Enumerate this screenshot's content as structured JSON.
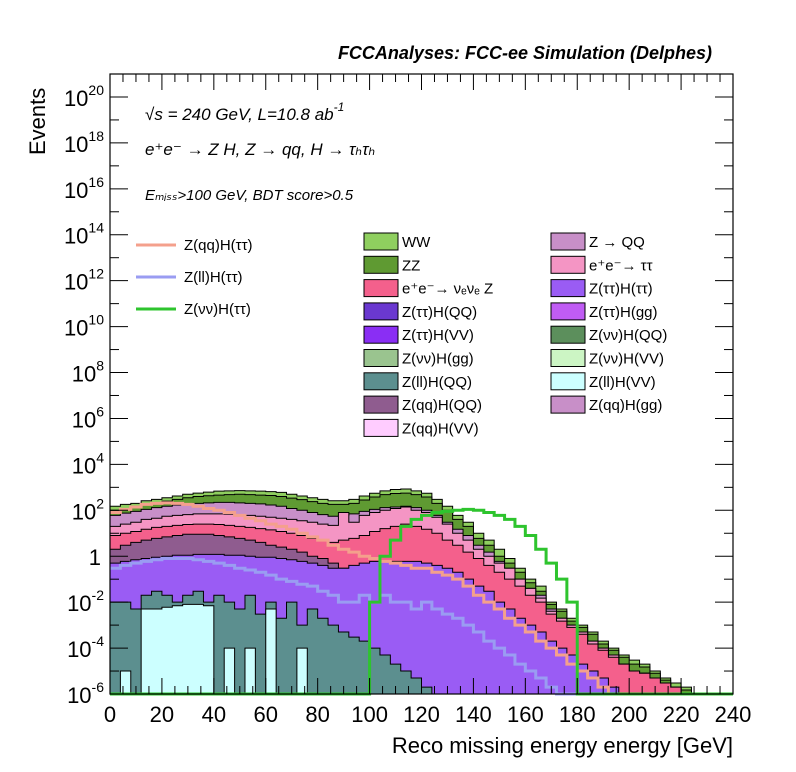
{
  "header": {
    "title": "FCCAnalyses: FCC-ee Simulation (Delphes)"
  },
  "annotations": {
    "line1_sqrt": "√s",
    "line1_rest": "= 240 GeV, L=10.8 ab",
    "line1_sup": "-1",
    "line2": "e⁺e⁻ → Z H, Z → qq, H → τₕτₕ",
    "line3": "Eₘᵢₛₛ>100 GeV, BDT score>0.5"
  },
  "chart_data": {
    "type": "bar",
    "title": "",
    "xlabel": "Reco missing energy energy [GeV]",
    "ylabel": "Events",
    "xlim": [
      0,
      240
    ],
    "ylim": [
      1e-06,
      1e+21
    ],
    "log_y": true,
    "x_ticks": [
      "0",
      "20",
      "40",
      "60",
      "80",
      "100",
      "120",
      "140",
      "160",
      "180",
      "200",
      "220",
      "240"
    ],
    "y_ticks": [
      {
        "value": 1e-06,
        "base": "10",
        "exp": "-6"
      },
      {
        "value": 0.0001,
        "base": "10",
        "exp": "-4"
      },
      {
        "value": 0.01,
        "base": "10",
        "exp": "-2"
      },
      {
        "value": 1,
        "base": "1",
        "exp": ""
      },
      {
        "value": 100.0,
        "base": "10",
        "exp": "2"
      },
      {
        "value": 10000.0,
        "base": "10",
        "exp": "4"
      },
      {
        "value": 1000000.0,
        "base": "10",
        "exp": "6"
      },
      {
        "value": 100000000.0,
        "base": "10",
        "exp": "8"
      },
      {
        "value": 10000000000.0,
        "base": "10",
        "exp": "10"
      },
      {
        "value": 1000000000000.0,
        "base": "10",
        "exp": "12"
      },
      {
        "value": 100000000000000.0,
        "base": "10",
        "exp": "14"
      },
      {
        "value": 1e+16,
        "base": "10",
        "exp": "16"
      },
      {
        "value": 1e+18,
        "base": "10",
        "exp": "18"
      },
      {
        "value": 1e+20,
        "base": "10",
        "exp": "20"
      }
    ],
    "bin_width": 4,
    "legend_lines": [
      {
        "name": "Z(qq)H(ττ)",
        "color": "#f4a08c"
      },
      {
        "name": "Z(ll)H(ττ)",
        "color": "#9a9cf2"
      },
      {
        "name": "Z(νν)H(ττ)",
        "color": "#2ec42e"
      }
    ],
    "legend_fills": [
      {
        "name": "WW",
        "color": "#8fcf5f"
      },
      {
        "name": "Z → QQ",
        "color": "#c88fc8"
      },
      {
        "name": "ZZ",
        "color": "#5f9a32"
      },
      {
        "name": "e⁺e⁻→ ττ",
        "color": "#f495c4"
      },
      {
        "name": "e⁺e⁻→ νₑνₑ Z",
        "color": "#f4608c"
      },
      {
        "name": "Z(ττ)H(ττ)",
        "color": "#9a5cf4"
      },
      {
        "name": "Z(ττ)H(QQ)",
        "color": "#6a38d0"
      },
      {
        "name": "Z(ττ)H(gg)",
        "color": "#c05cf4"
      },
      {
        "name": "Z(ττ)H(VV)",
        "color": "#8a2ef4"
      },
      {
        "name": "Z(νν)H(QQ)",
        "color": "#5c8f5c"
      },
      {
        "name": "Z(νν)H(gg)",
        "color": "#9ac48f"
      },
      {
        "name": "Z(νν)H(VV)",
        "color": "#ccf5c4"
      },
      {
        "name": "Z(ll)H(QQ)",
        "color": "#5c8f8f"
      },
      {
        "name": "Z(ll)H(VV)",
        "color": "#ccffff"
      },
      {
        "name": "Z(qq)H(QQ)",
        "color": "#8f5c8f"
      },
      {
        "name": "Z(qq)H(gg)",
        "color": "#c88fc8"
      },
      {
        "name": "Z(qq)H(VV)",
        "color": "#ffccff"
      }
    ],
    "stack_envelopes": [
      {
        "name": "WW",
        "color": "#8fcf5f",
        "values": [
          150,
          180,
          200,
          260,
          300,
          350,
          420,
          500,
          560,
          620,
          680,
          700,
          720,
          700,
          680,
          650,
          600,
          500,
          420,
          350,
          300,
          260,
          260,
          300,
          420,
          550,
          700,
          800,
          850,
          700,
          550,
          300,
          150,
          60,
          30,
          10,
          5,
          2,
          0.8,
          0.3,
          0.1,
          0.05,
          0.01,
          0.005,
          0.002,
          0.001,
          0.0005,
          0.0002,
          0.0001,
          5e-05,
          3e-05,
          2e-05,
          1e-05,
          5e-06,
          3e-06,
          2e-06,
          1e-06,
          1e-06,
          1e-06,
          1e-06
        ]
      },
      {
        "name": "ZZ",
        "color": "#5f9a32",
        "values": [
          100,
          120,
          140,
          180,
          210,
          250,
          300,
          350,
          400,
          430,
          460,
          480,
          500,
          480,
          460,
          440,
          400,
          340,
          290,
          240,
          200,
          180,
          180,
          200,
          280,
          380,
          480,
          540,
          560,
          480,
          380,
          200,
          100,
          40,
          20,
          6,
          3,
          1,
          0.5,
          0.2,
          0.07,
          0.03,
          0.008,
          0.004,
          0.0015,
          0.0008,
          0.0004,
          0.00015,
          8e-05,
          4e-05,
          2e-05,
          1.5e-05,
          8e-06,
          4e-06,
          2e-06,
          1.5e-06,
          1e-06,
          1e-06,
          1e-06,
          1e-06
        ]
      },
      {
        "name": "Z → QQ",
        "color": "#c88fc8",
        "values": [
          60,
          75,
          90,
          110,
          130,
          150,
          170,
          190,
          200,
          210,
          220,
          220,
          210,
          200,
          190,
          170,
          150,
          120,
          100,
          80,
          65,
          55,
          60,
          70,
          90,
          110,
          130,
          140,
          150,
          130,
          100,
          60,
          30,
          15,
          8,
          3,
          1.5,
          0.6,
          0.3,
          0.1,
          0.04,
          0.02,
          0.005,
          0.002,
          0.001,
          0.0005,
          0.0002,
          0.0001,
          5e-05,
          2e-05,
          1e-05,
          8e-06,
          5e-06,
          3e-06,
          2e-06,
          1e-06,
          1e-06,
          1e-06,
          1e-06,
          1e-06
        ]
      },
      {
        "name": "e⁺e⁻→ ττ",
        "color": "#f495c4",
        "values": [
          20,
          25,
          30,
          40,
          45,
          55,
          60,
          65,
          70,
          70,
          70,
          68,
          65,
          60,
          55,
          50,
          45,
          40,
          35,
          30,
          25,
          22,
          80,
          30,
          60,
          80,
          100,
          120,
          140,
          100,
          80,
          50,
          25,
          10,
          5,
          2,
          1,
          0.5,
          0.3,
          0.1,
          0.04,
          0.015,
          0.004,
          0.002,
          0.001,
          0.0005,
          0.0002,
          0.0001,
          5e-05,
          2e-05,
          1e-05,
          8e-06,
          5e-06,
          3e-06,
          2e-06,
          1e-06,
          1e-06,
          1e-06,
          1e-06,
          1e-06
        ]
      },
      {
        "name": "e⁺e⁻→ νₑνₑ Z",
        "color": "#f4608c",
        "values": [
          8,
          10,
          12,
          15,
          18,
          20,
          22,
          24,
          25,
          25,
          24,
          22,
          20,
          18,
          16,
          14,
          12,
          10,
          8,
          6,
          5,
          4,
          5,
          6,
          8,
          12,
          16,
          20,
          25,
          20,
          15,
          10,
          5,
          3,
          1.5,
          0.8,
          0.4,
          0.2,
          0.1,
          0.05,
          0.02,
          0.01,
          0.003,
          0.0015,
          0.0008,
          0.0004,
          0.00015,
          8e-05,
          4e-05,
          2e-05,
          1e-05,
          8e-06,
          5e-06,
          3e-06,
          2e-06,
          1e-06,
          1e-06,
          1e-06,
          1e-06,
          1e-06
        ]
      },
      {
        "name": "Z(qq)H(QQ)",
        "color": "#8f5c8f",
        "values": [
          2,
          3,
          4,
          5,
          6,
          7,
          8,
          9,
          9,
          9,
          8,
          7,
          6,
          5,
          4,
          3,
          2.5,
          2,
          1.5,
          1,
          0.8,
          0.5,
          0.3,
          0.1,
          0.05,
          0.05,
          0.05,
          0.05,
          0.05,
          0.05,
          0.03,
          0.02,
          0.01,
          0.005,
          0.002,
          0.001,
          0.0005,
          0.0002,
          0.0001,
          5e-05,
          2e-05,
          1e-05,
          5e-06,
          3e-06,
          2e-06,
          1e-06,
          1e-06,
          1e-06,
          1e-06,
          1e-06,
          1e-06,
          1e-06,
          1e-06,
          1e-06,
          1e-06,
          1e-06,
          1e-06,
          1e-06,
          1e-06,
          1e-06
        ]
      },
      {
        "name": "Z(ττ)H(ττ)",
        "color": "#9a5cf4",
        "values": [
          0.5,
          0.6,
          0.7,
          0.8,
          0.9,
          1,
          1.1,
          1.1,
          1.2,
          1.2,
          1.2,
          1.1,
          1.1,
          1,
          0.9,
          0.9,
          0.8,
          0.7,
          0.6,
          0.5,
          0.4,
          0.3,
          0.3,
          0.4,
          0.5,
          0.6,
          0.6,
          0.6,
          0.6,
          0.6,
          0.5,
          0.4,
          0.3,
          0.2,
          0.1,
          0.05,
          0.03,
          0.01,
          0.005,
          0.002,
          0.001,
          0.0005,
          0.0002,
          0.0001,
          5e-05,
          2e-05,
          1e-05,
          5e-06,
          2e-06,
          1e-06,
          1e-06,
          1e-06,
          1e-06,
          1e-06,
          1e-06,
          1e-06,
          1e-06,
          1e-06,
          1e-06,
          1e-06
        ]
      },
      {
        "name": "Z(ll)H(QQ)",
        "color": "#5c8f8f",
        "values": [
          0.01,
          0.01,
          0.005,
          0.02,
          0.03,
          0.02,
          0.01,
          0.02,
          0.03,
          0.01,
          0.02,
          0.01,
          0.005,
          0.02,
          0.003,
          0.01,
          0.002,
          0.01,
          0.001,
          0.005,
          0.002,
          0.001,
          0.0005,
          0.0003,
          0.0002,
          0.0001,
          5e-05,
          2e-05,
          1e-05,
          5e-06,
          2e-06,
          1e-06,
          1e-06,
          1e-06,
          1e-06,
          1e-06,
          1e-06,
          1e-06,
          1e-06,
          1e-06,
          1e-06,
          1e-06,
          1e-06,
          1e-06,
          1e-06,
          1e-06,
          1e-06,
          1e-06,
          1e-06,
          1e-06,
          1e-06,
          1e-06,
          1e-06,
          1e-06,
          1e-06,
          1e-06,
          1e-06,
          1e-06,
          1e-06,
          1e-06
        ]
      },
      {
        "name": "Z(ll)H(VV)",
        "color": "#ccffff",
        "values": [
          1e-06,
          1e-05,
          1e-06,
          0.005,
          0.005,
          0.006,
          0.007,
          0.008,
          0.008,
          0.007,
          1e-06,
          0.0001,
          1e-06,
          0.0001,
          1e-06,
          0.005,
          1e-06,
          1e-06,
          0.0001,
          1e-06,
          1e-06,
          1e-06,
          1e-06,
          1e-06,
          1e-06,
          1e-06,
          1e-06,
          1e-06,
          1e-06,
          1e-06,
          1e-06,
          1e-06,
          1e-06,
          1e-06,
          1e-06,
          1e-06,
          1e-06,
          1e-06,
          1e-06,
          1e-06,
          1e-06,
          1e-06,
          1e-06,
          1e-06,
          1e-06,
          1e-06,
          1e-06,
          1e-06,
          1e-06,
          1e-06,
          1e-06,
          1e-06,
          1e-06,
          1e-06,
          1e-06,
          1e-06,
          1e-06,
          1e-06,
          1e-06,
          1e-06
        ]
      }
    ],
    "series": [
      {
        "name": "Z(qq)H(ττ)",
        "color": "#f4a08c",
        "values": [
          80,
          110,
          140,
          180,
          200,
          210,
          200,
          180,
          150,
          120,
          100,
          80,
          60,
          45,
          35,
          25,
          20,
          15,
          10,
          7,
          5,
          3,
          2,
          1.5,
          1,
          0.8,
          0.6,
          0.5,
          0.4,
          0.3,
          0.3,
          0.2,
          0.15,
          0.1,
          0.05,
          0.02,
          0.01,
          0.005,
          0.002,
          0.001,
          0.0005,
          0.0002,
          0.0001,
          5e-05,
          2e-05,
          1e-05,
          5e-06,
          2e-06,
          1e-06,
          1e-06,
          1e-06,
          1e-06,
          1e-06,
          1e-06,
          1e-06,
          1e-06,
          1e-06,
          1e-06,
          1e-06,
          1e-06
        ]
      },
      {
        "name": "Z(ll)H(ττ)",
        "color": "#9a9cf2",
        "values": [
          0.3,
          0.4,
          0.5,
          0.6,
          0.7,
          0.8,
          0.8,
          0.8,
          0.7,
          0.6,
          0.5,
          0.4,
          0.3,
          0.25,
          0.2,
          0.15,
          0.1,
          0.08,
          0.06,
          0.05,
          0.03,
          0.02,
          0.01,
          0.01,
          0.02,
          0.01,
          0.02,
          0.01,
          0.01,
          0.005,
          0.01,
          0.005,
          0.003,
          0.002,
          0.001,
          0.0005,
          0.0002,
          0.0001,
          5e-05,
          2e-05,
          1e-05,
          5e-06,
          2e-06,
          1e-06,
          1e-06,
          1e-06,
          1e-06,
          1e-06,
          1e-06,
          1e-06,
          1e-06,
          1e-06,
          1e-06,
          1e-06,
          1e-06,
          1e-06,
          1e-06,
          1e-06,
          1e-06,
          1e-06
        ]
      },
      {
        "name": "Z(νν)H(ττ)",
        "color": "#2ec42e",
        "values": [
          1e-06,
          1e-06,
          1e-06,
          1e-06,
          1e-06,
          1e-06,
          1e-06,
          1e-06,
          1e-06,
          1e-06,
          1e-06,
          1e-06,
          1e-06,
          1e-06,
          1e-06,
          1e-06,
          1e-06,
          1e-06,
          1e-06,
          1e-06,
          1e-06,
          1e-06,
          1e-06,
          1e-06,
          1e-06,
          0.01,
          1,
          5,
          20,
          40,
          60,
          80,
          90,
          100,
          110,
          100,
          80,
          60,
          40,
          20,
          8,
          2,
          0.5,
          0.1,
          0.01,
          1e-06,
          1e-06,
          1e-06,
          1e-06,
          1e-06,
          1e-06,
          1e-06,
          1e-06,
          1e-06,
          1e-06,
          1e-06,
          1e-06,
          1e-06,
          1e-06,
          1e-06
        ]
      }
    ]
  }
}
